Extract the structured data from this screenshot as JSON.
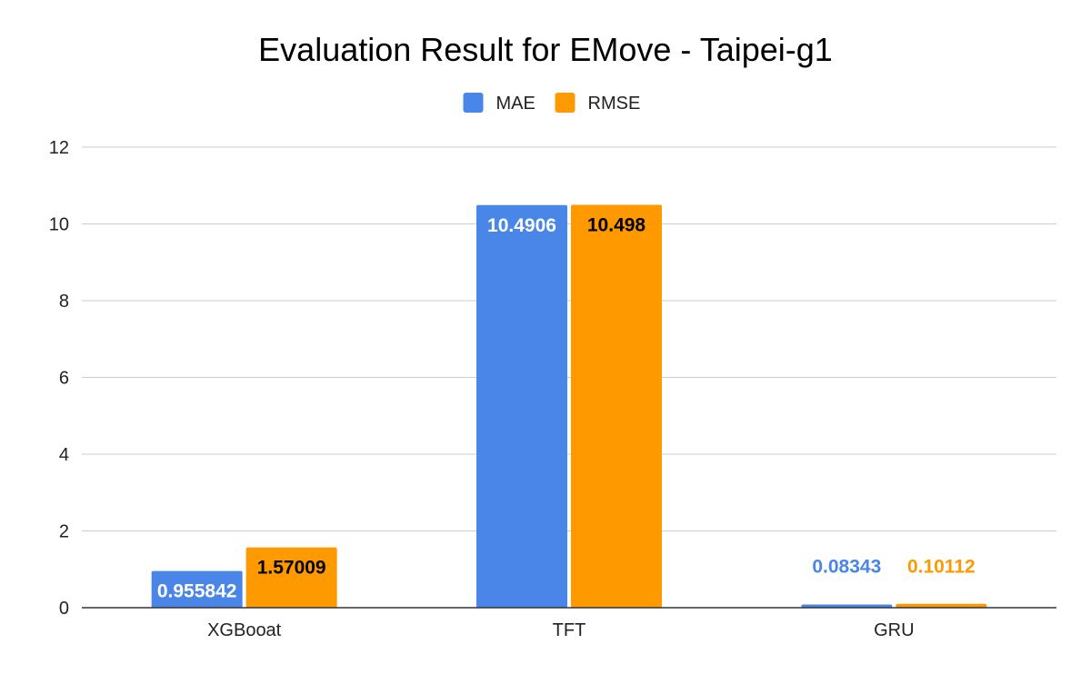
{
  "chart_data": {
    "type": "bar",
    "title": "Evaluation Result for EMove - Taipei-g1",
    "xlabel": "",
    "ylabel": "",
    "categories": [
      "XGBooat",
      "TFT",
      "GRU"
    ],
    "series": [
      {
        "name": "MAE",
        "color": "#4a86e8",
        "values": [
          0.955842,
          10.4906,
          0.08343
        ],
        "labels": [
          "0.955842",
          "10.4906",
          "0.08343"
        ]
      },
      {
        "name": "RMSE",
        "color": "#ff9900",
        "values": [
          1.57009,
          10.498,
          0.10112
        ],
        "labels": [
          "1.57009",
          "10.498",
          "0.10112"
        ]
      }
    ],
    "ylim": [
      0,
      12
    ],
    "yticks": [
      "0",
      "2",
      "4",
      "6",
      "8",
      "10",
      "12"
    ],
    "grid": true,
    "legend_position": "top-center"
  }
}
